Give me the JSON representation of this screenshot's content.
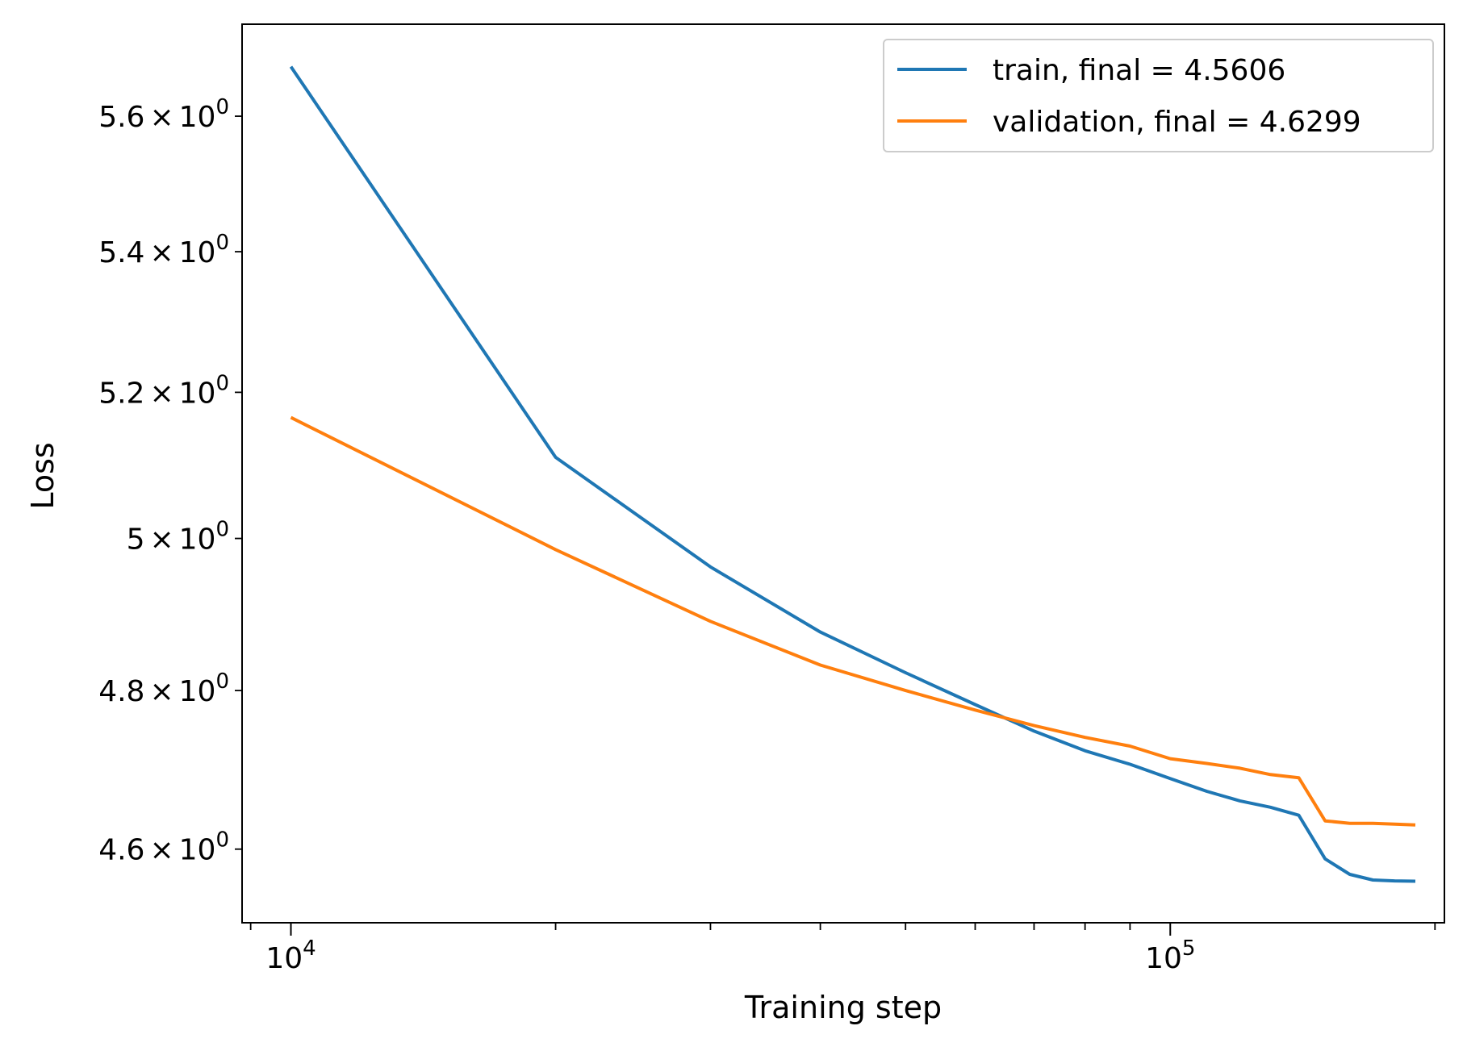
{
  "chart_data": {
    "type": "line",
    "title": "",
    "xlabel": "Training step",
    "ylabel": "Loss",
    "xscale": "log",
    "yscale": "log",
    "xlim": [
      8800,
      205000
    ],
    "ylim": [
      4.51,
      5.74
    ],
    "grid": false,
    "legend_position": "top-right",
    "x_ticks": [
      {
        "value": 10000,
        "base": "10",
        "exp": "4"
      },
      {
        "value": 100000,
        "base": "10",
        "exp": "5"
      }
    ],
    "x_minor_ticks": [
      9000,
      20000,
      30000,
      40000,
      50000,
      60000,
      70000,
      80000,
      90000,
      200000
    ],
    "y_ticks": [
      {
        "value": 4.6,
        "mantissa": "4.6",
        "base": "10",
        "exp": "0"
      },
      {
        "value": 4.8,
        "mantissa": "4.8",
        "base": "10",
        "exp": "0"
      },
      {
        "value": 5.0,
        "mantissa": "5",
        "base": "10",
        "exp": "0"
      },
      {
        "value": 5.2,
        "mantissa": "5.2",
        "base": "10",
        "exp": "0"
      },
      {
        "value": 5.4,
        "mantissa": "5.4",
        "base": "10",
        "exp": "0"
      },
      {
        "value": 5.6,
        "mantissa": "5.6",
        "base": "10",
        "exp": "0"
      }
    ],
    "series": [
      {
        "name": "train, final = 4.5606",
        "color": "#1f77b4",
        "x": [
          10000,
          20000,
          30000,
          40000,
          50000,
          60000,
          70000,
          80000,
          90000,
          100000,
          110000,
          120000,
          130000,
          140000,
          150000,
          160000,
          170000,
          180000,
          190000
        ],
        "y": [
          5.675,
          5.11,
          4.962,
          4.876,
          4.823,
          4.782,
          4.748,
          4.723,
          4.706,
          4.688,
          4.672,
          4.66,
          4.652,
          4.642,
          4.588,
          4.569,
          4.562,
          4.561,
          4.5606
        ]
      },
      {
        "name": "validation, final = 4.6299",
        "color": "#ff7f0e",
        "x": [
          10000,
          20000,
          30000,
          40000,
          50000,
          60000,
          70000,
          80000,
          90000,
          100000,
          110000,
          120000,
          130000,
          140000,
          150000,
          160000,
          170000,
          180000,
          190000
        ],
        "y": [
          5.165,
          4.985,
          4.89,
          4.833,
          4.8,
          4.775,
          4.755,
          4.74,
          4.729,
          4.713,
          4.707,
          4.701,
          4.693,
          4.689,
          4.635,
          4.632,
          4.632,
          4.631,
          4.6299
        ]
      }
    ]
  }
}
